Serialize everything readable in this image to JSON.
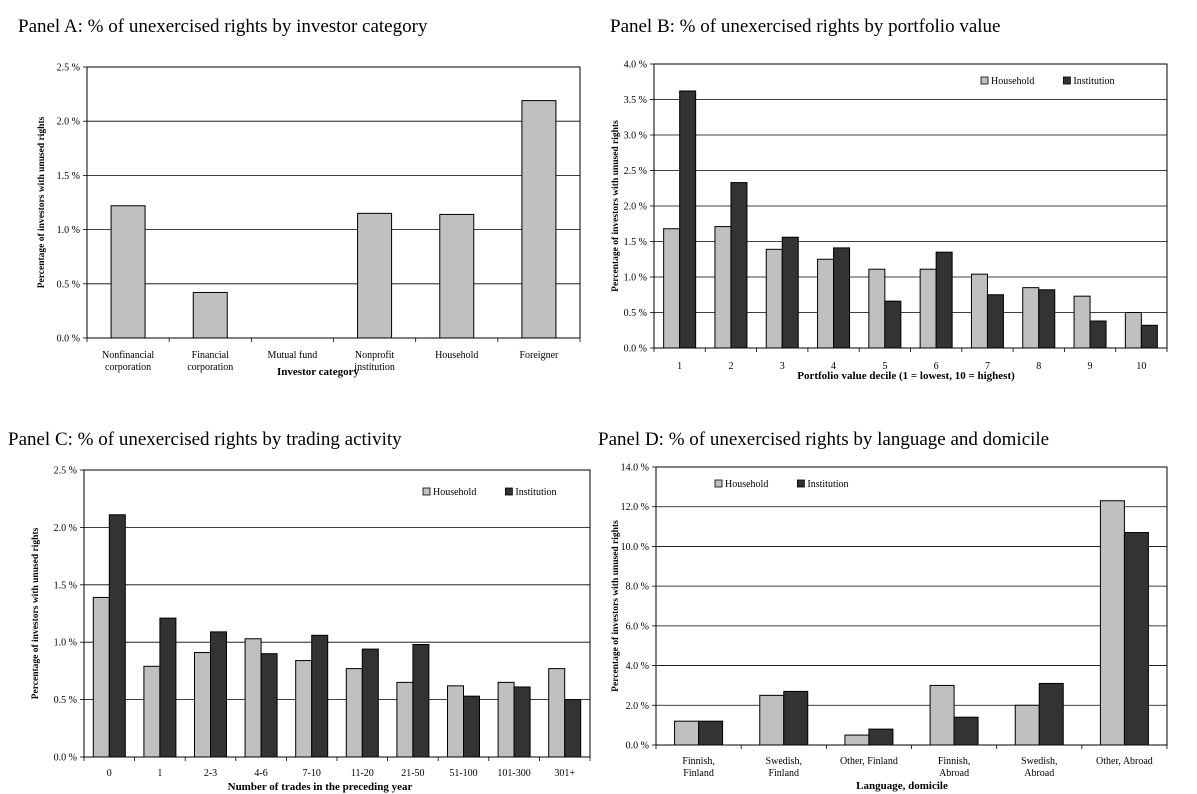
{
  "chart_data": [
    {
      "type": "bar",
      "title": "Panel A: % of unexercised rights by investor category",
      "xlabel": "Investor category",
      "ylabel": "Percentage of investors with unused rights",
      "ylim": [
        0,
        2.5
      ],
      "yticks": [
        "0.0 %",
        "0.5 %",
        "1.0 %",
        "1.5 %",
        "2.0 %",
        "2.5 %"
      ],
      "grid": true,
      "categories": [
        [
          "Nonfinancial",
          "corporation"
        ],
        [
          "Financial",
          "corporation"
        ],
        [
          "Mutual fund"
        ],
        [
          "Nonprofit",
          "institution"
        ],
        [
          "Household"
        ],
        [
          "Foreigner"
        ]
      ],
      "series": [
        {
          "values": [
            1.22,
            0.42,
            0,
            1.15,
            1.14,
            2.19
          ],
          "color": "#c0c0c0"
        }
      ]
    },
    {
      "type": "bar",
      "title": "Panel B: % of unexercised rights by portfolio value",
      "xlabel": "Portfolio value decile (1 = lowest, 10 = highest)",
      "ylabel": "Percentage of investors with unused rights",
      "ylim": [
        0,
        4.0
      ],
      "yticks": [
        "0.0 %",
        "0.5 %",
        "1.0 %",
        "1.5 %",
        "2.0 %",
        "2.5 %",
        "3.0 %",
        "3.5 %",
        "4.0 %"
      ],
      "grid": true,
      "legend": "top-right",
      "categories": [
        [
          "1"
        ],
        [
          "2"
        ],
        [
          "3"
        ],
        [
          "4"
        ],
        [
          "5"
        ],
        [
          "6"
        ],
        [
          "7"
        ],
        [
          "8"
        ],
        [
          "9"
        ],
        [
          "10"
        ]
      ],
      "series": [
        {
          "name": "Household",
          "values": [
            1.68,
            1.71,
            1.39,
            1.25,
            1.11,
            1.11,
            1.04,
            0.85,
            0.73,
            0.5
          ],
          "color": "#c0c0c0"
        },
        {
          "name": "Institution",
          "values": [
            3.62,
            2.33,
            1.56,
            1.41,
            0.66,
            1.35,
            0.75,
            0.82,
            0.38,
            0.32
          ],
          "color": "#333333"
        }
      ]
    },
    {
      "type": "bar",
      "title": "Panel C: % of unexercised rights by trading activity",
      "xlabel": "Number of trades in the preceding year",
      "ylabel": "Percentage of investors with unused rights",
      "ylim": [
        0,
        2.5
      ],
      "yticks": [
        "0.0 %",
        "0.5 %",
        "1.0 %",
        "1.5 %",
        "2.0 %",
        "2.5 %"
      ],
      "grid": true,
      "legend": "top-right",
      "categories": [
        [
          "0"
        ],
        [
          "1"
        ],
        [
          "2-3"
        ],
        [
          "4-6"
        ],
        [
          "7-10"
        ],
        [
          "11-20"
        ],
        [
          "21-50"
        ],
        [
          "51-100"
        ],
        [
          "101-300"
        ],
        [
          "301+"
        ]
      ],
      "series": [
        {
          "name": "Household",
          "values": [
            1.39,
            0.79,
            0.91,
            1.03,
            0.84,
            0.77,
            0.65,
            0.62,
            0.65,
            0.77
          ],
          "color": "#c0c0c0"
        },
        {
          "name": "Institution",
          "values": [
            2.11,
            1.21,
            1.09,
            0.9,
            1.06,
            0.94,
            0.98,
            0.53,
            0.61,
            0.5
          ],
          "color": "#333333"
        }
      ]
    },
    {
      "type": "bar",
      "title": "Panel D: % of unexercised rights by language and domicile",
      "xlabel": "Language, domicile",
      "ylabel": "Percentage of investors with unused rights",
      "ylim": [
        0,
        14.0
      ],
      "yticks": [
        "0.0 %",
        "2.0 %",
        "4.0 %",
        "6.0 %",
        "8.0 %",
        "10.0 %",
        "12.0 %",
        "14.0 %"
      ],
      "grid": true,
      "legend": "top-left",
      "categories": [
        [
          "Finnish,",
          "Finland"
        ],
        [
          "Swedish,",
          "Finland"
        ],
        [
          "Other, Finland"
        ],
        [
          "Finnish,",
          "Abroad"
        ],
        [
          "Swedish,",
          "Abroad"
        ],
        [
          "Other, Abroad"
        ]
      ],
      "series": [
        {
          "name": "Household",
          "values": [
            1.2,
            2.5,
            0.5,
            3.0,
            2.0,
            12.3
          ],
          "color": "#c0c0c0"
        },
        {
          "name": "Institution",
          "values": [
            1.2,
            2.7,
            0.8,
            1.4,
            3.1,
            10.7
          ],
          "color": "#333333"
        }
      ]
    }
  ]
}
